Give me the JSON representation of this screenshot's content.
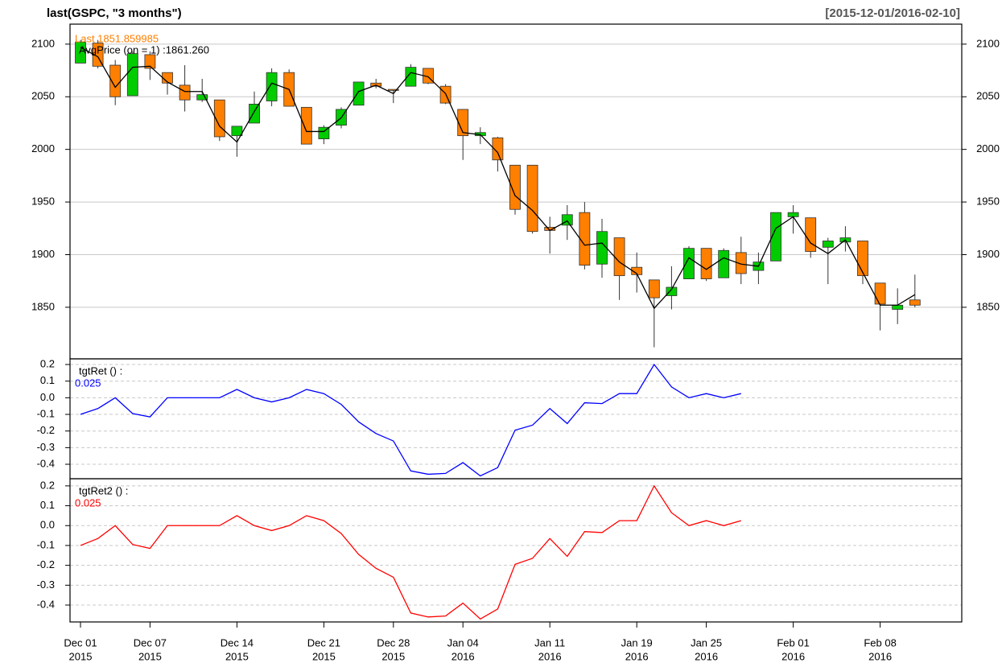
{
  "chart_data": [
    {
      "type": "candlestick",
      "title": "last(GSPC, \"3 months\")",
      "range_label": "[2015-12-01/2016-02-10]",
      "categories": [
        [
          "Dec 01",
          "2015"
        ],
        null,
        null,
        null,
        [
          "Dec 07",
          "2015"
        ],
        null,
        null,
        null,
        null,
        [
          "Dec 14",
          "2015"
        ],
        null,
        null,
        null,
        null,
        [
          "Dec 21",
          "2015"
        ],
        null,
        null,
        null,
        [
          "Dec 28",
          "2015"
        ],
        null,
        null,
        null,
        [
          "Jan 04",
          "2016"
        ],
        null,
        null,
        null,
        null,
        [
          "Jan 11",
          "2016"
        ],
        null,
        null,
        null,
        null,
        [
          "Jan 19",
          "2016"
        ],
        null,
        null,
        null,
        [
          "Jan 25",
          "2016"
        ],
        null,
        null,
        null,
        null,
        [
          "Feb 01",
          "2016"
        ],
        null,
        null,
        null,
        null,
        [
          "Feb 08",
          "2016"
        ],
        null,
        null
      ],
      "open": [
        2082,
        2101,
        2080,
        2051,
        2090,
        2073,
        2061,
        2047,
        2047,
        2013,
        2025,
        2046,
        2073,
        2040,
        2010,
        2023,
        2042,
        2063,
        2057,
        2060,
        2077,
        2060,
        2038,
        2013,
        2011,
        1985,
        1985,
        1926,
        1928,
        1940,
        1891,
        1916,
        1888,
        1876,
        1861,
        1877,
        1906,
        1878,
        1902,
        1885,
        1894,
        1936,
        1935,
        1907,
        1912,
        1913,
        1873,
        1848,
        1857
      ],
      "high": [
        2104,
        2104,
        2085,
        2093,
        2093,
        2073,
        2080,
        2067,
        2047,
        2022,
        2055,
        2077,
        2076,
        2040,
        2023,
        2040,
        2064,
        2067,
        2057,
        2081,
        2077,
        2062,
        2038,
        2021,
        2012,
        1985,
        1985,
        1936,
        1947,
        1950,
        1934,
        1916,
        1902,
        1876,
        1889,
        1908,
        1906,
        1906,
        1917,
        1902,
        1940,
        1947,
        1935,
        1916,
        1927,
        1913,
        1873,
        1868,
        1881
      ],
      "low": [
        2082,
        2077,
        2042,
        2051,
        2066,
        2052,
        2036,
        2045,
        2008,
        1993,
        2025,
        2041,
        2041,
        2005,
        2005,
        2020,
        2042,
        2058,
        2044,
        2060,
        2062,
        2043,
        1990,
        2005,
        1979,
        1938,
        1920,
        1901,
        1914,
        1886,
        1878,
        1857,
        1864,
        1812,
        1848,
        1877,
        1875,
        1878,
        1872,
        1872,
        1894,
        1920,
        1897,
        1872,
        1903,
        1872,
        1828,
        1834,
        1850
      ],
      "close": [
        2102,
        2079,
        2050,
        2091,
        2077,
        2063,
        2047,
        2052,
        2012,
        2022,
        2043,
        2073,
        2041,
        2005,
        2021,
        2038,
        2064,
        2060,
        2056,
        2078,
        2063,
        2044,
        2013,
        2016,
        1990,
        1943,
        1922,
        1923,
        1938,
        1890,
        1922,
        1880,
        1881,
        1859,
        1869,
        1906,
        1877,
        1904,
        1882,
        1893,
        1940,
        1940,
        1903,
        1913,
        1916,
        1880,
        1853,
        1852,
        1852
      ],
      "up_color": "#00cc00",
      "down_color": "#ff7f00",
      "last_label": "Last 1851.859985",
      "last_color": "#ff7f00",
      "series": [
        {
          "name": "AvgPrice (on = 1) :1861.260",
          "color": "#000000",
          "values": [
            2097,
            2088,
            2059,
            2078,
            2079,
            2064,
            2055,
            2055,
            2022,
            2007,
            2036,
            2063,
            2057,
            2017,
            2017,
            2030,
            2055,
            2061,
            2053,
            2073,
            2069,
            2053,
            2016,
            2014,
            1997,
            1956,
            1942,
            1923,
            1932,
            1909,
            1911,
            1893,
            1882,
            1849,
            1867,
            1897,
            1886,
            1897,
            1891,
            1889,
            1925,
            1936,
            1911,
            1901,
            1914,
            1883,
            1852,
            1852,
            1862
          ]
        }
      ],
      "ylim": [
        1801,
        2119
      ],
      "yticks": [
        1850,
        1900,
        1950,
        2000,
        2050,
        2100
      ],
      "grid": true
    },
    {
      "type": "line",
      "last_label": "0.025",
      "series": [
        {
          "name": "tgtRet () :",
          "color": "#0000ff",
          "values": [
            -0.1,
            -0.065,
            0,
            -0.095,
            -0.115,
            0,
            0,
            0,
            0,
            0.05,
            0,
            -0.025,
            0,
            0.05,
            0.025,
            -0.04,
            -0.145,
            -0.215,
            -0.26,
            -0.44,
            -0.46,
            -0.455,
            -0.39,
            -0.47,
            -0.42,
            -0.195,
            -0.165,
            -0.065,
            -0.155,
            -0.03,
            -0.035,
            0.025,
            0.025,
            0.2,
            0.065,
            0,
            0.025,
            0,
            0.025,
            null,
            null,
            null,
            null,
            null,
            null,
            null,
            null,
            null,
            null
          ]
        }
      ],
      "ylim": [
        -0.487,
        0.234
      ],
      "yticks": [
        -0.4,
        -0.3,
        -0.2,
        -0.1,
        {
          "value": 0,
          "label": "0.0"
        },
        0.1,
        0.2
      ],
      "grid": true
    },
    {
      "type": "line",
      "last_label": "0.025",
      "series": [
        {
          "name": "tgtRet2 () :",
          "color": "#ff0000",
          "values": [
            -0.1,
            -0.065,
            0,
            -0.095,
            -0.115,
            0,
            0,
            0,
            0,
            0.05,
            0,
            -0.025,
            0,
            0.05,
            0.025,
            -0.04,
            -0.145,
            -0.215,
            -0.26,
            -0.44,
            -0.46,
            -0.455,
            -0.39,
            -0.47,
            -0.42,
            -0.195,
            -0.165,
            -0.065,
            -0.155,
            -0.03,
            -0.035,
            0.025,
            0.025,
            0.2,
            0.065,
            0,
            0.025,
            0,
            0.025,
            null,
            null,
            null,
            null,
            null,
            null,
            null,
            null,
            null,
            null
          ]
        }
      ],
      "ylim": [
        -0.485,
        0.236
      ],
      "yticks": [
        -0.4,
        -0.3,
        -0.2,
        -0.1,
        {
          "value": 0,
          "label": "0.0"
        },
        0.1,
        0.2
      ],
      "grid": true
    }
  ]
}
